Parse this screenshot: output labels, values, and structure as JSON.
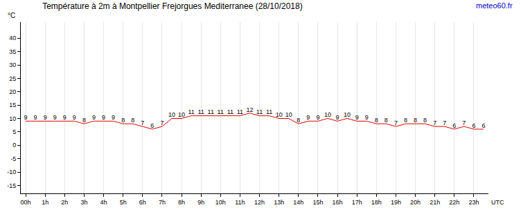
{
  "chart_data": {
    "type": "line",
    "title": "Température à 2m à Montpellier Frejorgues Mediterranee (28/10/2018)",
    "y_label": "°C",
    "x_label": "UTC",
    "source": "meteo60.fr",
    "categories": [
      "00h",
      null,
      "1h",
      null,
      "2h",
      null,
      "3h",
      null,
      "4h",
      null,
      "5h",
      null,
      "6h",
      null,
      "7h",
      null,
      "8h",
      null,
      "9h",
      null,
      "10h",
      null,
      "11h",
      null,
      "12h",
      null,
      "13h",
      null,
      "14h",
      null,
      "15h",
      null,
      "16h",
      null,
      "17h",
      null,
      "18h",
      null,
      "19h",
      null,
      "20h",
      null,
      "21h",
      null,
      "22h",
      null,
      "23h",
      null
    ],
    "values": [
      9,
      9,
      9,
      9,
      9,
      9,
      8,
      9,
      9,
      9,
      8,
      8,
      7,
      6,
      7,
      10,
      10,
      11,
      11,
      11,
      11,
      11,
      11,
      12,
      11,
      11,
      10,
      10,
      8,
      9,
      9,
      10,
      9,
      10,
      9,
      9,
      8,
      8,
      7,
      8,
      8,
      8,
      7,
      7,
      6,
      7,
      6,
      6
    ],
    "color": "#e00000",
    "ylim": [
      -18,
      46
    ],
    "yticks": [
      -15,
      -10,
      -5,
      0,
      5,
      10,
      15,
      20,
      25,
      30,
      35,
      40
    ],
    "grid": true,
    "data_labels": true
  }
}
